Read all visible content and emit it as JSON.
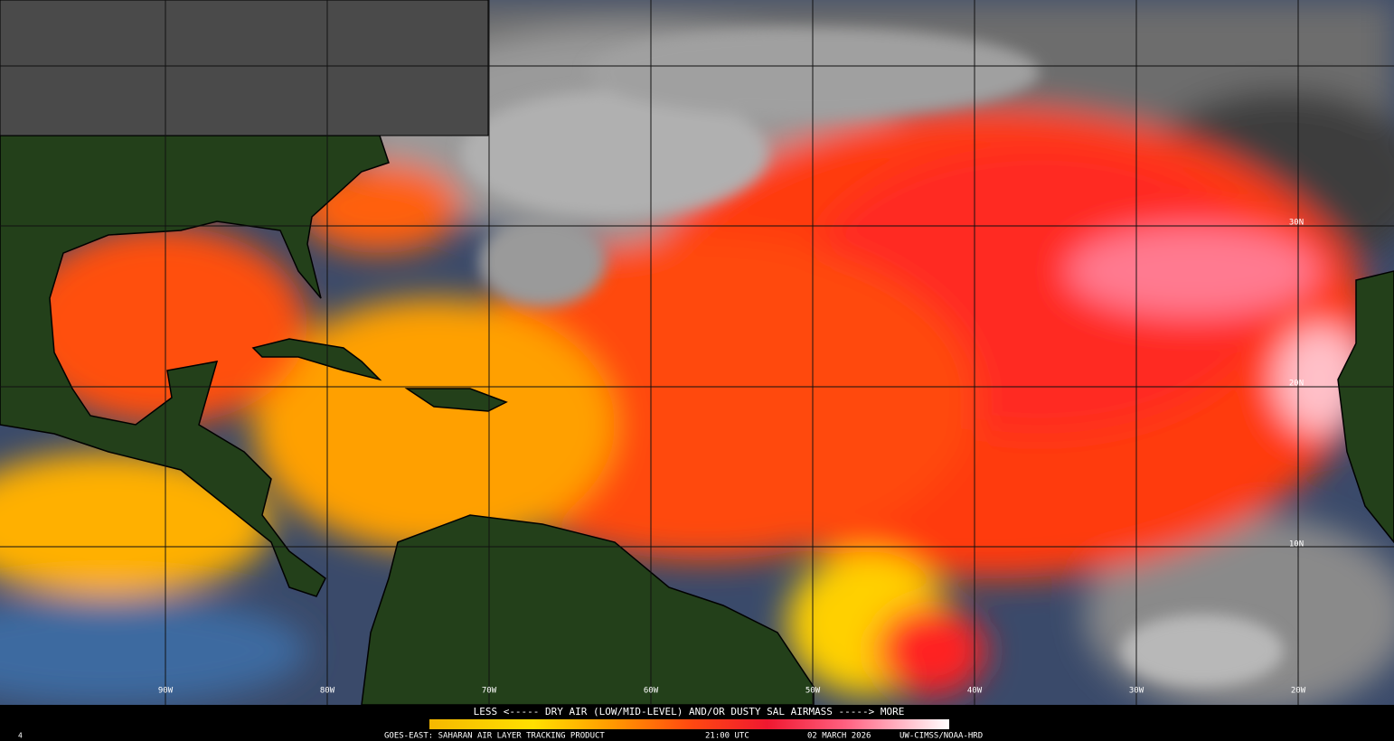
{
  "map": {
    "longitude_labels": [
      "90W",
      "80W",
      "70W",
      "60W",
      "50W",
      "40W",
      "30W",
      "20W"
    ],
    "latitude_labels": [
      "30N",
      "20N",
      "10N"
    ],
    "legend_caption": "LESS <----- DRY AIR (LOW/MID-LEVEL) AND/OR DUSTY SAL AIRMASS -----> MORE",
    "product": "GOES-EAST: SAHARAN AIR LAYER TRACKING PRODUCT",
    "time": "21:00 UTC",
    "date": "02 MARCH 2026",
    "credit": "UW-CIMSS/NOAA-HRD",
    "frame": "4"
  }
}
